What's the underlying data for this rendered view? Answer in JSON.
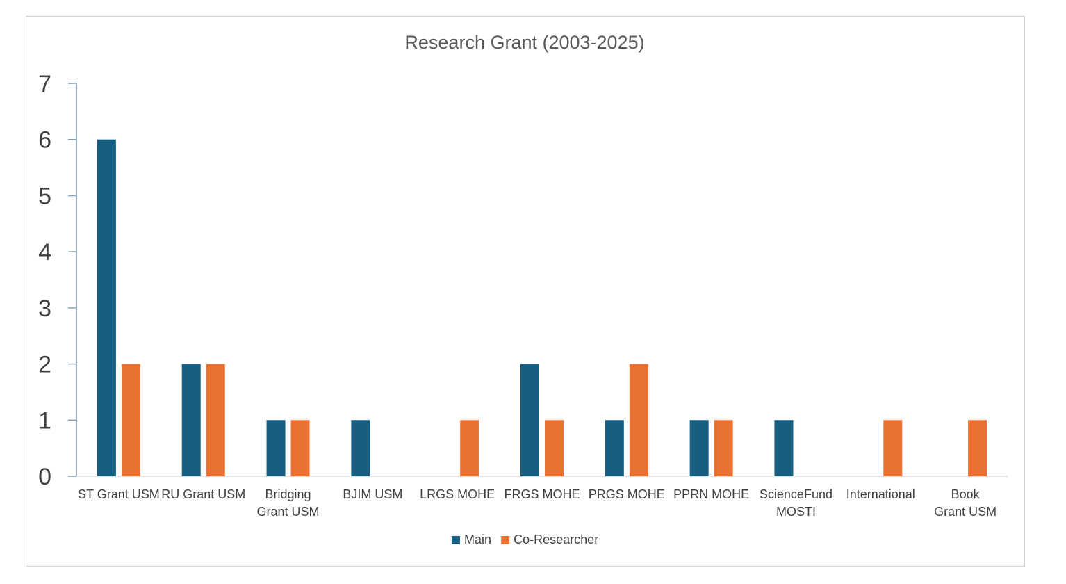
{
  "chart_data": {
    "type": "bar",
    "title": "Research Grant (2003-2025)",
    "xlabel": "",
    "ylabel": "",
    "ylim": [
      0,
      7
    ],
    "yticks": [
      0,
      1,
      2,
      3,
      4,
      5,
      6,
      7
    ],
    "categories": [
      "ST Grant USM",
      "RU Grant USM",
      "Bridging Grant USM",
      "BJIM USM",
      "LRGS  MOHE",
      "FRGS MOHE",
      "PRGS MOHE",
      "PPRN MOHE",
      "ScienceFund MOSTI",
      "International",
      "Book Grant USM"
    ],
    "series": [
      {
        "name": "Main",
        "color": "#175e81",
        "values": [
          6,
          2,
          1,
          1,
          0,
          2,
          1,
          1,
          1,
          0,
          0
        ]
      },
      {
        "name": "Co-Researcher",
        "color": "#e97132",
        "values": [
          2,
          2,
          1,
          0,
          1,
          1,
          2,
          1,
          0,
          1,
          1
        ]
      }
    ],
    "grid": false,
    "legend": "bottom"
  }
}
